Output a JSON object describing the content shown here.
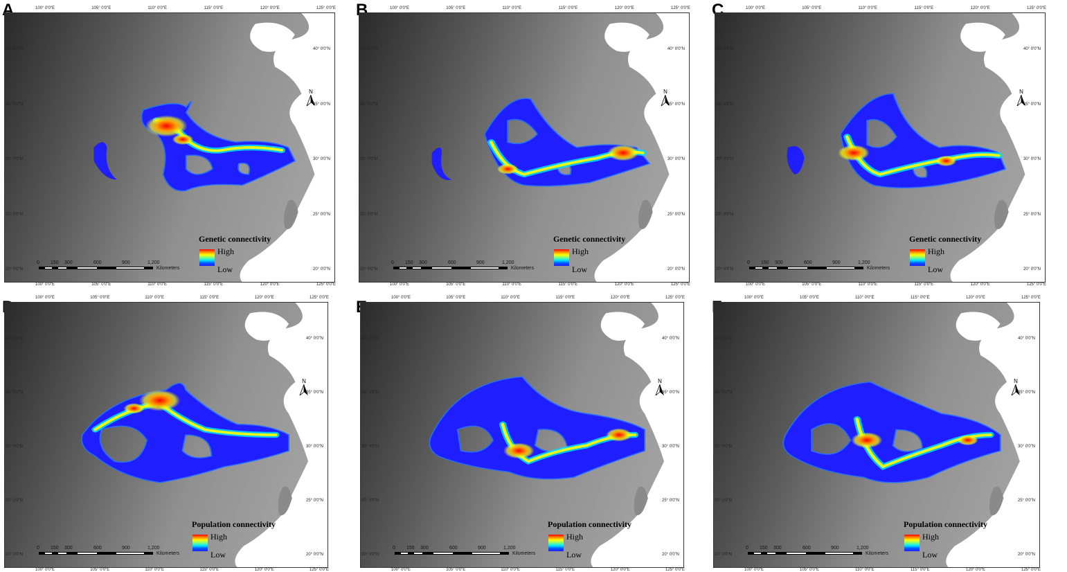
{
  "lon_ticks": [
    "100° 0′0″E",
    "105° 0′0″E",
    "110° 0′0″E",
    "115° 0′0″E",
    "120° 0′0″E",
    "125° 0′0″E"
  ],
  "lat_ticks": [
    "40° 0′0″N",
    "35° 0′0″N",
    "30° 0′0″N",
    "25° 0′0″N",
    "20° 0′0″N"
  ],
  "scale_labels": [
    "0",
    "150",
    "300",
    "600",
    "900",
    "1,200"
  ],
  "scale_unit": "Kilometers",
  "north_label": "N",
  "legend_high": "High",
  "legend_low": "Low",
  "colors": {
    "high": "#ff0000",
    "mid": "#ffff00",
    "low": "#1e1eff",
    "land": "#8a8a8a",
    "sea": "#ffffff"
  },
  "panels": [
    {
      "letter": "A",
      "legend_title": "Genetic connectivity"
    },
    {
      "letter": "B",
      "legend_title": "Genetic connectivity"
    },
    {
      "letter": "C",
      "legend_title": "Genetic connectivity"
    },
    {
      "letter": "D",
      "legend_title": "Population connectivity"
    },
    {
      "letter": "E",
      "legend_title": "Population connectivity"
    },
    {
      "letter": "F",
      "legend_title": "Population connectivity"
    }
  ]
}
